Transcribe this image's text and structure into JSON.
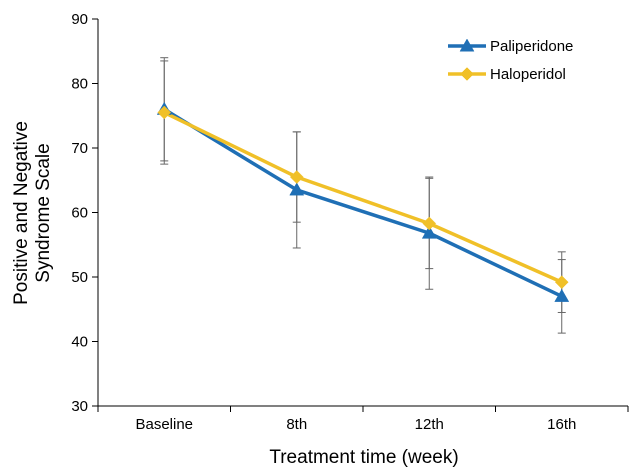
{
  "chart_data": {
    "type": "line",
    "title": "",
    "xlabel": "Treatment time (week)",
    "ylabel": [
      "Positive and Negative",
      "Syndrome Scale"
    ],
    "categories": [
      "Baseline",
      "8th",
      "12th",
      "16th"
    ],
    "ylim": [
      30,
      90
    ],
    "yticks": [
      30,
      40,
      50,
      60,
      70,
      80,
      90
    ],
    "grid": false,
    "legend": "top-right",
    "series": [
      {
        "name": "Paliperidone",
        "color": "#1f6fb5",
        "marker": "triangle",
        "values": [
          76.0,
          63.5,
          56.8,
          47.0
        ],
        "error": [
          8.0,
          9.0,
          8.7,
          5.7
        ]
      },
      {
        "name": "Haloperidol",
        "color": "#f0c028",
        "marker": "diamond",
        "values": [
          75.5,
          65.5,
          58.3,
          49.2
        ],
        "error": [
          8.0,
          7.0,
          7.0,
          4.7
        ]
      }
    ]
  }
}
